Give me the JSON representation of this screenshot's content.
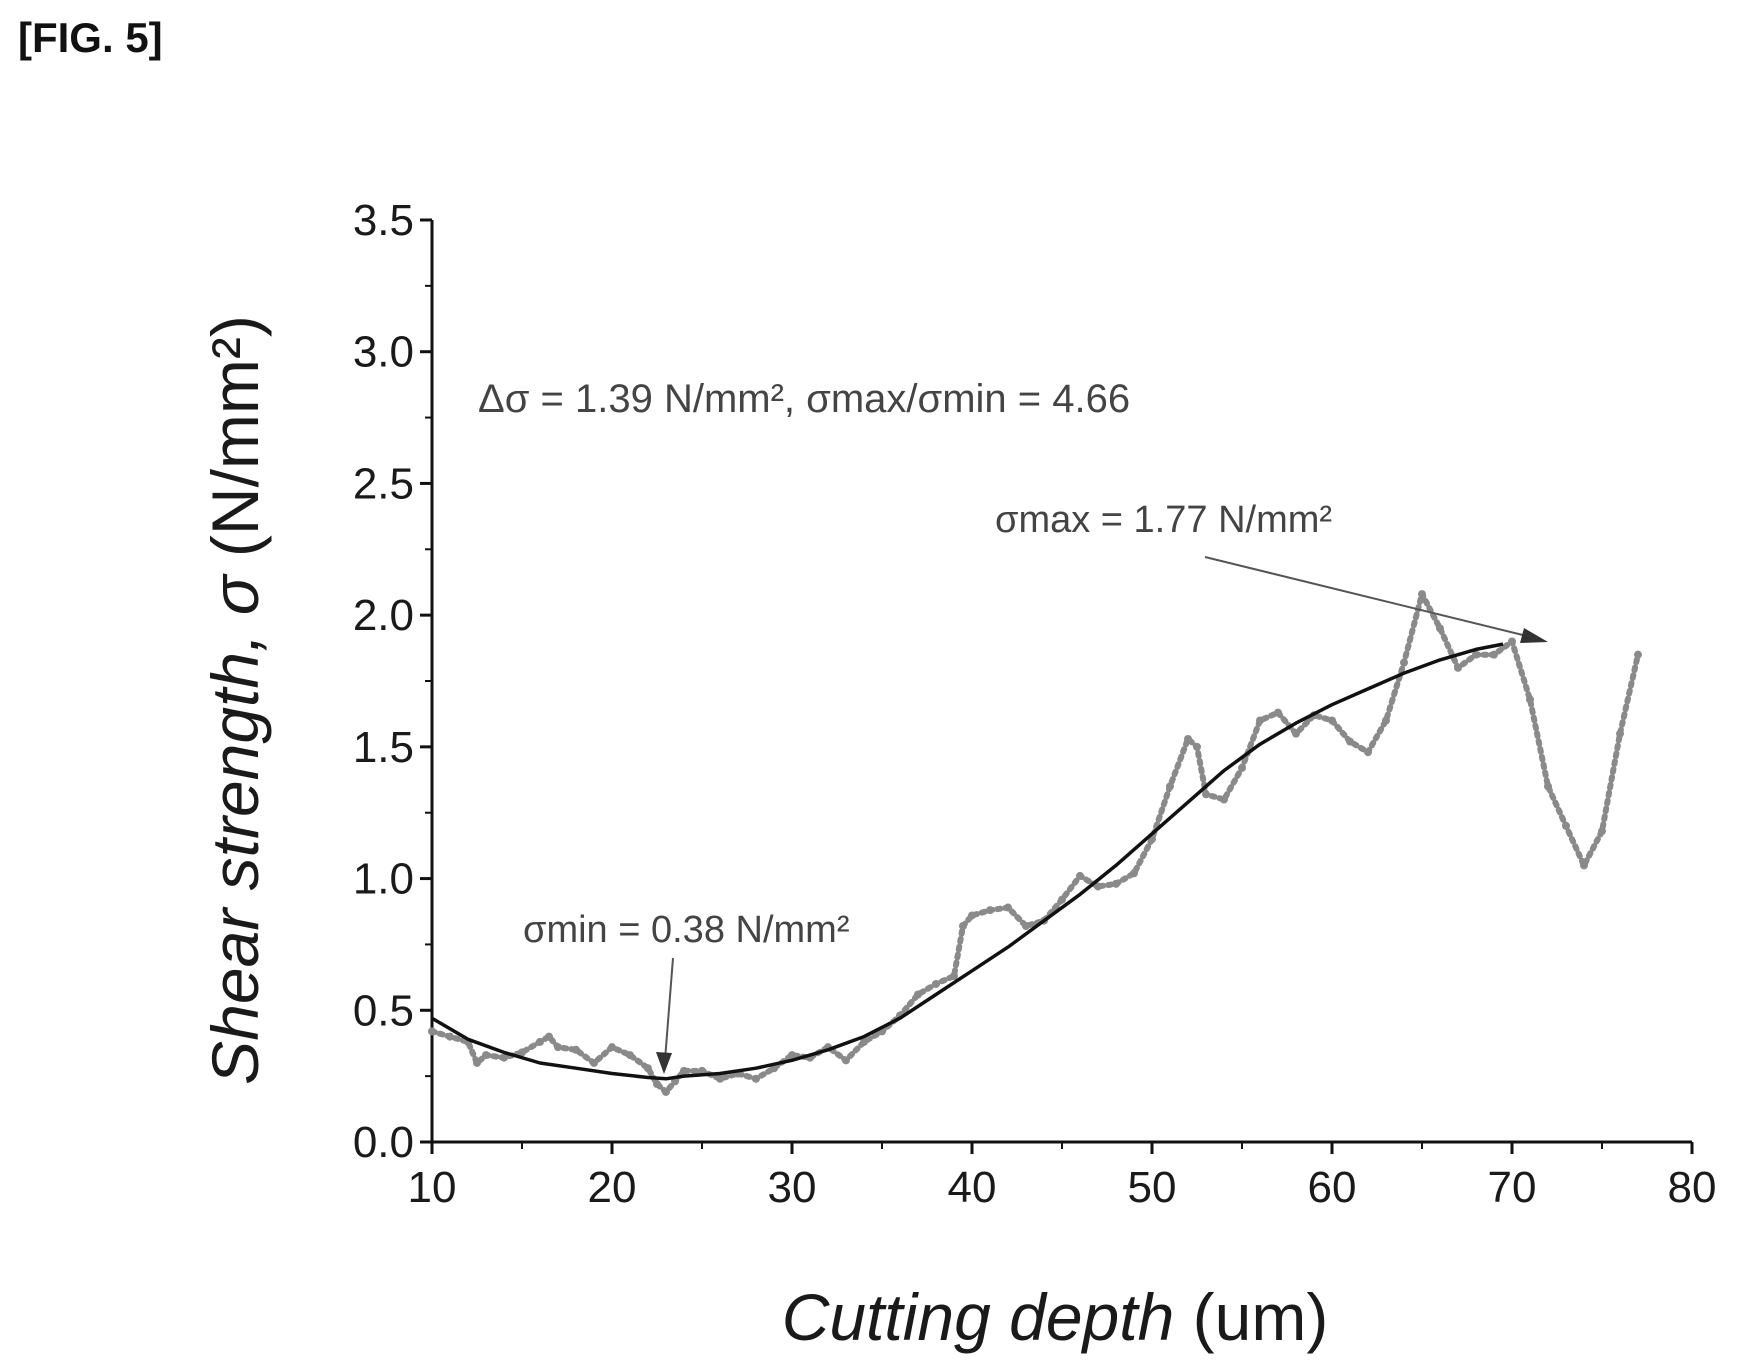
{
  "figure_label": "[FIG. 5]",
  "colors": {
    "axis": "#111111",
    "fit": "#111111",
    "data": "#8a8a8a",
    "text": "#1a1a1a"
  },
  "chart_data": {
    "type": "line",
    "xlabel_italic": "Cutting depth",
    "xlabel_unit": "(um)",
    "ylabel_italic": "Shear strength, σ",
    "ylabel_unit": "(N/mm²)",
    "xlim": [
      10,
      80
    ],
    "ylim": [
      0,
      3.5
    ],
    "x_ticks": [
      "10",
      "20",
      "30",
      "40",
      "50",
      "60",
      "70",
      "80"
    ],
    "y_ticks": [
      "0.0",
      "0.5",
      "1.0",
      "1.5",
      "2.0",
      "2.5",
      "3.0",
      "3.5"
    ],
    "grid": false,
    "annotations": {
      "summary": "Δσ = 1.39 N/mm², σmax/σmin = 4.66",
      "sigma_max": "σmax = 1.77 N/mm²",
      "sigma_min": "σmin = 0.38 N/mm²"
    },
    "series": [
      {
        "style": "dotted",
        "x": [
          10,
          11,
          12,
          12.5,
          13,
          14,
          15,
          16,
          16.5,
          17,
          18,
          19,
          20,
          21,
          22,
          22.5,
          23,
          23.5,
          24,
          25,
          26,
          27,
          28,
          29,
          30,
          31,
          32,
          33,
          34,
          35,
          36,
          37,
          38,
          39,
          39.5,
          40,
          41,
          42,
          43,
          44,
          45,
          46,
          47,
          48,
          49,
          50,
          51,
          52,
          52.5,
          53,
          54,
          55,
          56,
          57,
          58,
          59,
          60,
          61,
          62,
          63,
          64,
          65,
          66,
          67,
          68,
          69,
          70,
          71,
          72,
          73,
          74,
          75,
          76,
          77
        ],
        "y": [
          0.42,
          0.4,
          0.38,
          0.3,
          0.33,
          0.32,
          0.34,
          0.38,
          0.4,
          0.36,
          0.35,
          0.3,
          0.36,
          0.33,
          0.28,
          0.22,
          0.19,
          0.23,
          0.27,
          0.27,
          0.24,
          0.26,
          0.24,
          0.28,
          0.33,
          0.32,
          0.36,
          0.31,
          0.38,
          0.42,
          0.48,
          0.56,
          0.6,
          0.63,
          0.82,
          0.86,
          0.88,
          0.89,
          0.82,
          0.84,
          0.92,
          1.01,
          0.97,
          0.98,
          1.02,
          1.15,
          1.35,
          1.53,
          1.5,
          1.32,
          1.3,
          1.42,
          1.6,
          1.63,
          1.55,
          1.62,
          1.6,
          1.52,
          1.48,
          1.6,
          1.82,
          2.08,
          1.95,
          1.8,
          1.85,
          1.85,
          1.9,
          1.68,
          1.35,
          1.2,
          1.05,
          1.18,
          1.55,
          1.85
        ]
      },
      {
        "style": "solid",
        "x": [
          10,
          12,
          14,
          16,
          18,
          20,
          22,
          23,
          24,
          26,
          28,
          30,
          32,
          34,
          36,
          38,
          40,
          42,
          44,
          46,
          48,
          50,
          52,
          54,
          56,
          58,
          60,
          62,
          64,
          66,
          68,
          69.5
        ],
        "y": [
          0.47,
          0.39,
          0.34,
          0.3,
          0.28,
          0.26,
          0.245,
          0.24,
          0.25,
          0.26,
          0.28,
          0.31,
          0.35,
          0.4,
          0.47,
          0.56,
          0.65,
          0.74,
          0.84,
          0.94,
          1.05,
          1.17,
          1.29,
          1.41,
          1.51,
          1.59,
          1.66,
          1.72,
          1.78,
          1.83,
          1.87,
          1.89
        ]
      }
    ]
  }
}
